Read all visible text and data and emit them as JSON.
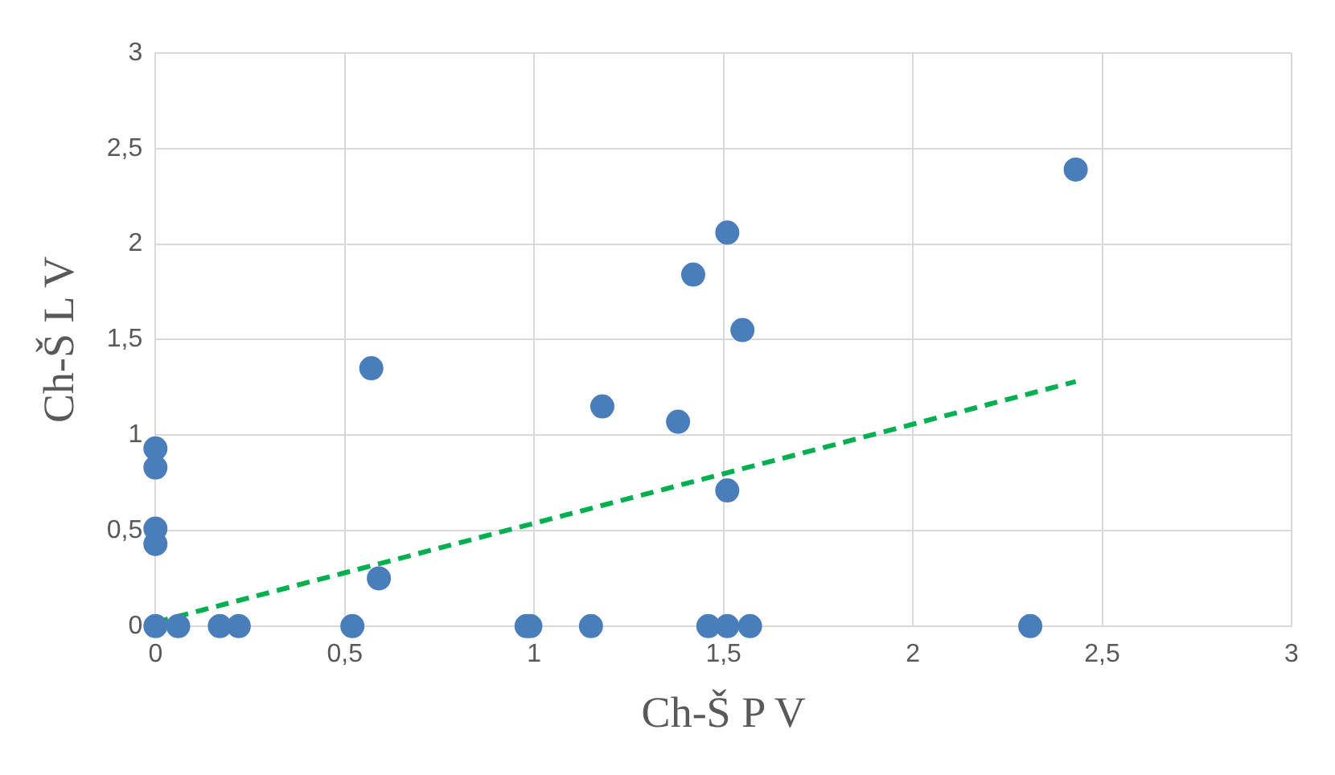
{
  "chart_data": {
    "type": "scatter",
    "xlabel": "Ch-Š P V",
    "ylabel": "Ch-Š L V",
    "xlim": [
      0,
      3
    ],
    "ylim": [
      0,
      3
    ],
    "xticks": [
      0,
      {
        "value": 0.5,
        "label": "0,5"
      },
      1,
      {
        "value": 1.5,
        "label": "1,5"
      },
      2,
      {
        "value": 2.5,
        "label": "2,5"
      },
      3
    ],
    "yticks": [
      0,
      {
        "value": 0.5,
        "label": "0,5"
      },
      1,
      {
        "value": 1.5,
        "label": "1,5"
      },
      2,
      {
        "value": 2.5,
        "label": "2,5"
      },
      3
    ],
    "grid": true,
    "marker": "circle",
    "series": [
      {
        "color": "#4a7ebb",
        "x": [
          0,
          0,
          0,
          0,
          0,
          0.06,
          0.17,
          0.22,
          0.52,
          0.57,
          0.59,
          0.98,
          0.99,
          1.15,
          1.18,
          1.38,
          1.42,
          1.46,
          1.51,
          1.55,
          1.51,
          1.51,
          1.57,
          2.31,
          2.43
        ],
        "values": [
          0,
          0.93,
          0.83,
          0.51,
          0.43,
          0,
          0,
          0,
          0,
          1.35,
          0.25,
          0,
          0,
          0,
          1.15,
          1.07,
          1.84,
          0,
          2.06,
          1.55,
          0.71,
          0,
          0,
          0,
          2.39
        ]
      },
      {
        "type": "line",
        "color": "#00b050",
        "line_style": "dashed",
        "marker": "none",
        "x": [
          0,
          2.43
        ],
        "values": [
          0.02,
          1.28
        ]
      }
    ]
  }
}
